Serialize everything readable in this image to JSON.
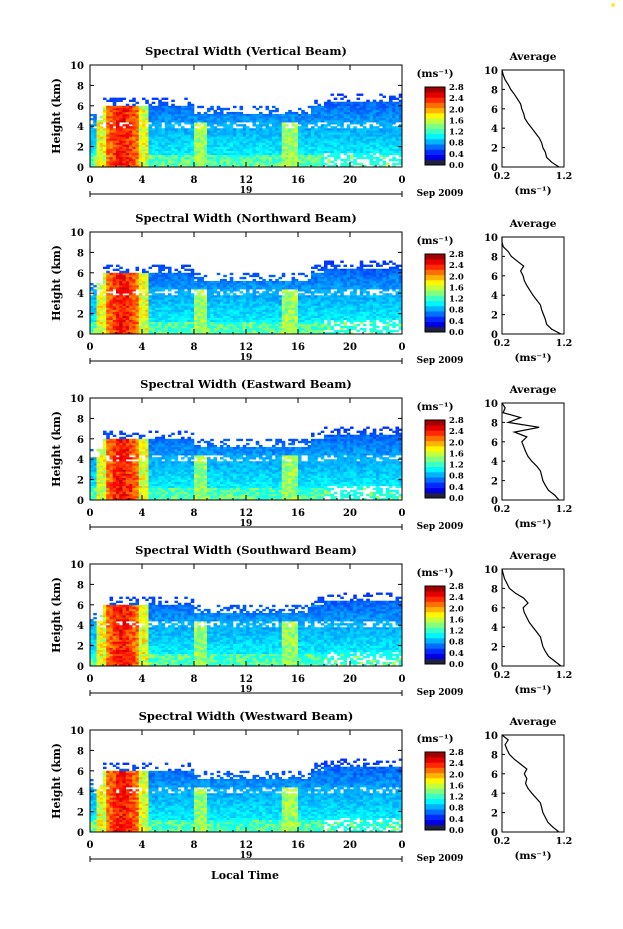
{
  "figure": {
    "xlabel": "Local Time",
    "height_ticks": [
      "0",
      "2",
      "4",
      "6",
      "8",
      "10"
    ],
    "height_label": "Height (km)",
    "time_ticks": [
      "0",
      "4",
      "8",
      "12",
      "16",
      "20",
      "0"
    ],
    "day_marker": "19",
    "date_label": "Sep 2009",
    "colorbar_unit": "(ms⁻¹)",
    "colorbar_ticks": [
      "0.0",
      "0.4",
      "0.8",
      "1.2",
      "1.6",
      "2.0",
      "2.4",
      "2.8"
    ],
    "profile_title": "Average",
    "profile_unit": "(ms⁻¹)",
    "profile_xticks": [
      "0.2",
      "1.2"
    ],
    "profile_yticks": [
      "0",
      "2",
      "4",
      "6",
      "8",
      "10"
    ]
  },
  "chart_data": [
    {
      "type": "heatmap",
      "title": "Spectral Width (Vertical Beam)",
      "x": "Local Time (h, 19 Sep 2009)",
      "xlim": [
        0,
        24
      ],
      "ylabel": "Height (km)",
      "ylim": [
        0,
        10
      ],
      "color_range": [
        0.0,
        3.0
      ],
      "features": {
        "strong_column_hour": 2.5,
        "secondary_columns_hours": [
          8.5,
          15.3
        ],
        "echo_top_km": 6.0
      },
      "profile": {
        "title": "Average",
        "xlim": [
          0.2,
          1.2
        ],
        "heights": [
          0,
          0.5,
          1,
          1.5,
          2,
          2.5,
          3,
          3.5,
          4,
          4.5,
          5,
          5.5,
          6,
          6.5,
          7,
          7.5,
          8,
          8.5,
          9,
          9.5,
          10
        ],
        "values": [
          1.12,
          1.0,
          0.92,
          0.9,
          0.86,
          0.84,
          0.8,
          0.74,
          0.68,
          0.62,
          0.57,
          0.55,
          0.52,
          0.5,
          0.45,
          0.4,
          0.34,
          0.3,
          0.25,
          0.22,
          0.2
        ]
      }
    },
    {
      "type": "heatmap",
      "title": "Spectral Width (Northward Beam)",
      "x": "Local Time (h, 19 Sep 2009)",
      "xlim": [
        0,
        24
      ],
      "ylabel": "Height (km)",
      "ylim": [
        0,
        10
      ],
      "color_range": [
        0.0,
        3.0
      ],
      "features": {
        "strong_column_hour": 2.5,
        "secondary_columns_hours": [
          8.5,
          15.3
        ],
        "echo_top_km": 6.0
      },
      "profile": {
        "title": "Average",
        "xlim": [
          0.2,
          1.2
        ],
        "heights": [
          0,
          0.5,
          1,
          1.5,
          2,
          2.5,
          3,
          3.5,
          4,
          4.5,
          5,
          5.5,
          6,
          6.5,
          7,
          7.5,
          8,
          8.5,
          9,
          9.5,
          10
        ],
        "values": [
          1.15,
          1.0,
          0.92,
          0.9,
          0.87,
          0.84,
          0.82,
          0.76,
          0.7,
          0.65,
          0.6,
          0.56,
          0.54,
          0.5,
          0.55,
          0.45,
          0.35,
          0.3,
          0.22,
          0.2,
          0.2
        ]
      }
    },
    {
      "type": "heatmap",
      "title": "Spectral Width (Eastward Beam)",
      "x": "Local Time (h, 19 Sep 2009)",
      "xlim": [
        0,
        24
      ],
      "ylabel": "Height (km)",
      "ylim": [
        0,
        10
      ],
      "color_range": [
        0.0,
        3.0
      ],
      "features": {
        "strong_column_hour": 2.5,
        "secondary_columns_hours": [
          8.5,
          15.3
        ],
        "echo_top_km": 6.0
      },
      "profile": {
        "title": "Average",
        "xlim": [
          0.2,
          1.2
        ],
        "heights": [
          0,
          0.5,
          1,
          1.5,
          2,
          2.5,
          3,
          3.5,
          4,
          4.5,
          5,
          5.5,
          6,
          6.5,
          7,
          7.5,
          8,
          8.5,
          9,
          9.5,
          10
        ],
        "values": [
          1.12,
          1.05,
          0.95,
          0.9,
          0.86,
          0.84,
          0.82,
          0.76,
          0.68,
          0.62,
          0.58,
          0.55,
          0.52,
          0.6,
          0.4,
          0.8,
          0.3,
          0.5,
          0.22,
          0.25,
          0.2
        ]
      }
    },
    {
      "type": "heatmap",
      "title": "Spectral Width (Southward Beam)",
      "x": "Local Time (h, 19 Sep 2009)",
      "xlim": [
        0,
        24
      ],
      "ylabel": "Height (km)",
      "ylim": [
        0,
        10
      ],
      "color_range": [
        0.0,
        3.0
      ],
      "features": {
        "strong_column_hour": 2.5,
        "secondary_columns_hours": [
          8.5,
          15.3
        ],
        "echo_top_km": 6.0
      },
      "profile": {
        "title": "Average",
        "xlim": [
          0.2,
          1.2
        ],
        "heights": [
          0,
          0.5,
          1,
          1.5,
          2,
          2.5,
          3,
          3.5,
          4,
          4.5,
          5,
          5.5,
          6,
          6.5,
          7,
          7.5,
          8,
          8.5,
          9,
          9.5,
          10
        ],
        "values": [
          1.15,
          1.05,
          0.95,
          0.9,
          0.86,
          0.84,
          0.82,
          0.76,
          0.7,
          0.64,
          0.6,
          0.56,
          0.54,
          0.62,
          0.55,
          0.42,
          0.32,
          0.28,
          0.24,
          0.22,
          0.2
        ]
      }
    },
    {
      "type": "heatmap",
      "title": "Spectral Width (Westward Beam)",
      "x": "Local Time (h, 19 Sep 2009)",
      "xlim": [
        0,
        24
      ],
      "ylabel": "Height (km)",
      "ylim": [
        0,
        10
      ],
      "color_range": [
        0.0,
        3.0
      ],
      "features": {
        "strong_column_hour": 2.5,
        "secondary_columns_hours": [
          8.5,
          15.3
        ],
        "echo_top_km": 6.0
      },
      "profile": {
        "title": "Average",
        "xlim": [
          0.2,
          1.2
        ],
        "heights": [
          0,
          0.5,
          1,
          1.5,
          2,
          2.5,
          3,
          3.5,
          4,
          4.5,
          5,
          5.5,
          6,
          6.5,
          7,
          7.5,
          8,
          8.5,
          9,
          9.5,
          10
        ],
        "values": [
          1.12,
          1.02,
          0.94,
          0.9,
          0.86,
          0.84,
          0.82,
          0.75,
          0.68,
          0.62,
          0.58,
          0.6,
          0.56,
          0.6,
          0.5,
          0.4,
          0.32,
          0.28,
          0.25,
          0.3,
          0.2
        ]
      }
    }
  ]
}
